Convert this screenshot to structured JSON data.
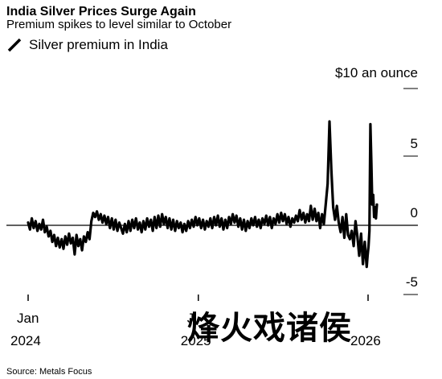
{
  "header": {
    "title": "India Silver Prices Surge Again",
    "subtitle": "Premium spikes to level similar to October"
  },
  "legend": {
    "label": "Silver premium in India",
    "swatch_icon": "line-swatch-icon"
  },
  "footer": {
    "source": "Source: Metals Focus",
    "watermark": "烽火戏诸侯"
  },
  "colors": {
    "line": "#000000",
    "zero_line": "#000000",
    "axis": "#000000"
  },
  "chart_data": {
    "type": "line",
    "title": "India Silver Prices Surge Again",
    "subtitle": "Premium spikes to level similar to October",
    "ylabel": "$10 an ounce",
    "ylim": [
      -7.5,
      10
    ],
    "y_ticks": [
      {
        "value": 5,
        "label": "5"
      },
      {
        "value": 0,
        "label": "0"
      },
      {
        "value": -5,
        "label": "-5"
      }
    ],
    "y_unit_label": {
      "value": 10,
      "label": "$10 an ounce"
    },
    "xlim": [
      "2024-01-01",
      "2026-02-01"
    ],
    "x_ticks": [
      {
        "date": "2024-01-01",
        "line1": "Jan",
        "line2": "2024"
      },
      {
        "date": "2025-01-01",
        "line1": "J",
        "line2": "2025"
      },
      {
        "date": "2026-01-01",
        "line1": "",
        "line2": "2026"
      }
    ],
    "grid": false,
    "legend_position": "top-left",
    "series": [
      {
        "name": "Silver premium in India",
        "points": [
          [
            "2024-01-01",
            0.2
          ],
          [
            "2024-01-05",
            -0.3
          ],
          [
            "2024-01-09",
            0.5
          ],
          [
            "2024-01-13",
            -0.2
          ],
          [
            "2024-01-17",
            0.3
          ],
          [
            "2024-01-21",
            -0.4
          ],
          [
            "2024-01-25",
            0.1
          ],
          [
            "2024-01-29",
            -0.3
          ],
          [
            "2024-02-02",
            0.4
          ],
          [
            "2024-02-06",
            -0.5
          ],
          [
            "2024-02-10",
            -0.1
          ],
          [
            "2024-02-14",
            -0.8
          ],
          [
            "2024-02-18",
            -0.4
          ],
          [
            "2024-02-22",
            -1.2
          ],
          [
            "2024-02-26",
            -0.7
          ],
          [
            "2024-03-01",
            -1.5
          ],
          [
            "2024-03-05",
            -0.9
          ],
          [
            "2024-03-09",
            -1.6
          ],
          [
            "2024-03-13",
            -1.0
          ],
          [
            "2024-03-17",
            -1.7
          ],
          [
            "2024-03-21",
            -0.8
          ],
          [
            "2024-03-25",
            -1.4
          ],
          [
            "2024-03-29",
            -0.6
          ],
          [
            "2024-04-02",
            -1.3
          ],
          [
            "2024-04-06",
            -0.9
          ],
          [
            "2024-04-10",
            -2.1
          ],
          [
            "2024-04-14",
            -0.7
          ],
          [
            "2024-04-18",
            -1.5
          ],
          [
            "2024-04-22",
            -1.0
          ],
          [
            "2024-04-26",
            -1.8
          ],
          [
            "2024-04-30",
            -0.8
          ],
          [
            "2024-05-04",
            -1.2
          ],
          [
            "2024-05-08",
            -0.5
          ],
          [
            "2024-05-12",
            -1.0
          ],
          [
            "2024-05-16",
            0.3
          ],
          [
            "2024-05-20",
            0.9
          ],
          [
            "2024-05-24",
            0.6
          ],
          [
            "2024-05-28",
            1.0
          ],
          [
            "2024-06-01",
            0.4
          ],
          [
            "2024-06-05",
            0.8
          ],
          [
            "2024-06-09",
            0.2
          ],
          [
            "2024-06-13",
            0.7
          ],
          [
            "2024-06-17",
            0.1
          ],
          [
            "2024-06-21",
            0.6
          ],
          [
            "2024-06-25",
            -0.2
          ],
          [
            "2024-06-29",
            0.5
          ],
          [
            "2024-07-03",
            -0.3
          ],
          [
            "2024-07-07",
            0.4
          ],
          [
            "2024-07-11",
            -0.4
          ],
          [
            "2024-07-15",
            0.2
          ],
          [
            "2024-07-19",
            -0.2
          ],
          [
            "2024-07-23",
            -0.6
          ],
          [
            "2024-07-27",
            0.1
          ],
          [
            "2024-07-31",
            -0.5
          ],
          [
            "2024-08-04",
            0.3
          ],
          [
            "2024-08-08",
            -0.4
          ],
          [
            "2024-08-12",
            0.4
          ],
          [
            "2024-08-16",
            -0.2
          ],
          [
            "2024-08-20",
            0.5
          ],
          [
            "2024-08-24",
            -0.3
          ],
          [
            "2024-08-28",
            0.2
          ],
          [
            "2024-09-01",
            -0.5
          ],
          [
            "2024-09-05",
            0.3
          ],
          [
            "2024-09-09",
            -0.3
          ],
          [
            "2024-09-13",
            0.5
          ],
          [
            "2024-09-17",
            -0.1
          ],
          [
            "2024-09-21",
            0.4
          ],
          [
            "2024-09-25",
            -0.4
          ],
          [
            "2024-09-29",
            0.6
          ],
          [
            "2024-10-03",
            -0.2
          ],
          [
            "2024-10-07",
            0.7
          ],
          [
            "2024-10-11",
            -0.1
          ],
          [
            "2024-10-15",
            0.8
          ],
          [
            "2024-10-19",
            0.1
          ],
          [
            "2024-10-23",
            0.6
          ],
          [
            "2024-10-27",
            -0.2
          ],
          [
            "2024-10-31",
            0.5
          ],
          [
            "2024-11-04",
            -0.3
          ],
          [
            "2024-11-08",
            0.4
          ],
          [
            "2024-11-12",
            -0.4
          ],
          [
            "2024-11-16",
            0.3
          ],
          [
            "2024-11-20",
            -0.2
          ],
          [
            "2024-11-24",
            0.2
          ],
          [
            "2024-11-28",
            -0.5
          ],
          [
            "2024-12-02",
            0.1
          ],
          [
            "2024-12-06",
            -0.4
          ],
          [
            "2024-12-10",
            0.3
          ],
          [
            "2024-12-14",
            -0.2
          ],
          [
            "2024-12-18",
            0.4
          ],
          [
            "2024-12-22",
            -0.1
          ],
          [
            "2024-12-26",
            0.6
          ],
          [
            "2024-12-30",
            0.0
          ],
          [
            "2025-01-03",
            0.5
          ],
          [
            "2025-01-07",
            -0.2
          ],
          [
            "2025-01-11",
            0.4
          ],
          [
            "2025-01-15",
            -0.3
          ],
          [
            "2025-01-19",
            0.3
          ],
          [
            "2025-01-23",
            -0.1
          ],
          [
            "2025-01-27",
            0.5
          ],
          [
            "2025-01-31",
            -0.2
          ],
          [
            "2025-02-04",
            0.6
          ],
          [
            "2025-02-08",
            0.0
          ],
          [
            "2025-02-12",
            0.7
          ],
          [
            "2025-02-16",
            -0.1
          ],
          [
            "2025-02-20",
            0.5
          ],
          [
            "2025-02-24",
            -0.3
          ],
          [
            "2025-02-28",
            0.4
          ],
          [
            "2025-03-04",
            -0.2
          ],
          [
            "2025-03-08",
            0.6
          ],
          [
            "2025-03-12",
            0.1
          ],
          [
            "2025-03-16",
            0.8
          ],
          [
            "2025-03-20",
            0.2
          ],
          [
            "2025-03-24",
            0.7
          ],
          [
            "2025-03-28",
            -0.1
          ],
          [
            "2025-04-01",
            0.5
          ],
          [
            "2025-04-05",
            -0.3
          ],
          [
            "2025-04-09",
            0.4
          ],
          [
            "2025-04-13",
            -0.4
          ],
          [
            "2025-04-17",
            0.3
          ],
          [
            "2025-04-21",
            -0.2
          ],
          [
            "2025-04-25",
            0.5
          ],
          [
            "2025-04-29",
            0.0
          ],
          [
            "2025-05-03",
            0.6
          ],
          [
            "2025-05-07",
            -0.1
          ],
          [
            "2025-05-11",
            0.4
          ],
          [
            "2025-05-15",
            -0.2
          ],
          [
            "2025-05-19",
            0.5
          ],
          [
            "2025-05-23",
            0.1
          ],
          [
            "2025-05-27",
            0.7
          ],
          [
            "2025-05-31",
            0.0
          ],
          [
            "2025-06-04",
            0.6
          ],
          [
            "2025-06-08",
            -0.2
          ],
          [
            "2025-06-12",
            0.5
          ],
          [
            "2025-06-16",
            0.1
          ],
          [
            "2025-06-20",
            0.8
          ],
          [
            "2025-06-24",
            0.2
          ],
          [
            "2025-06-28",
            0.9
          ],
          [
            "2025-07-02",
            0.3
          ],
          [
            "2025-07-06",
            0.8
          ],
          [
            "2025-07-10",
            0.1
          ],
          [
            "2025-07-14",
            0.6
          ],
          [
            "2025-07-18",
            -0.1
          ],
          [
            "2025-07-22",
            0.5
          ],
          [
            "2025-07-26",
            0.2
          ],
          [
            "2025-07-30",
            0.7
          ],
          [
            "2025-08-03",
            0.3
          ],
          [
            "2025-08-07",
            1.1
          ],
          [
            "2025-08-11",
            0.4
          ],
          [
            "2025-08-15",
            0.9
          ],
          [
            "2025-08-19",
            0.2
          ],
          [
            "2025-08-23",
            0.8
          ],
          [
            "2025-08-27",
            0.3
          ],
          [
            "2025-08-31",
            1.4
          ],
          [
            "2025-09-04",
            0.4
          ],
          [
            "2025-09-08",
            1.2
          ],
          [
            "2025-09-12",
            0.3
          ],
          [
            "2025-09-16",
            0.9
          ],
          [
            "2025-09-20",
            -0.2
          ],
          [
            "2025-09-24",
            0.8
          ],
          [
            "2025-09-28",
            0.1
          ],
          [
            "2025-10-02",
            1.5
          ],
          [
            "2025-10-06",
            3.0
          ],
          [
            "2025-10-10",
            7.5
          ],
          [
            "2025-10-14",
            4.0
          ],
          [
            "2025-10-18",
            1.3
          ],
          [
            "2025-10-22",
            0.4
          ],
          [
            "2025-10-26",
            1.4
          ],
          [
            "2025-10-30",
            0.2
          ],
          [
            "2025-11-03",
            -0.5
          ],
          [
            "2025-11-07",
            0.6
          ],
          [
            "2025-11-11",
            -0.9
          ],
          [
            "2025-11-15",
            0.8
          ],
          [
            "2025-11-19",
            -0.7
          ],
          [
            "2025-11-23",
            -1.0
          ],
          [
            "2025-11-27",
            -0.4
          ],
          [
            "2025-12-01",
            -1.5
          ],
          [
            "2025-12-05",
            0.3
          ],
          [
            "2025-12-09",
            -0.8
          ],
          [
            "2025-12-13",
            -2.2
          ],
          [
            "2025-12-17",
            -0.6
          ],
          [
            "2025-12-21",
            -2.8
          ],
          [
            "2025-12-25",
            -1.2
          ],
          [
            "2025-12-29",
            -3.0
          ],
          [
            "2025-12-31",
            -2.2
          ],
          [
            "2026-01-02",
            -1.5
          ],
          [
            "2026-01-04",
            -0.4
          ],
          [
            "2026-01-06",
            7.3
          ],
          [
            "2026-01-08",
            4.5
          ],
          [
            "2026-01-10",
            1.5
          ],
          [
            "2026-01-12",
            2.2
          ],
          [
            "2026-01-14",
            0.6
          ],
          [
            "2026-01-16",
            1.3
          ],
          [
            "2026-01-18",
            0.5
          ],
          [
            "2026-01-20",
            1.5
          ]
        ]
      }
    ]
  }
}
